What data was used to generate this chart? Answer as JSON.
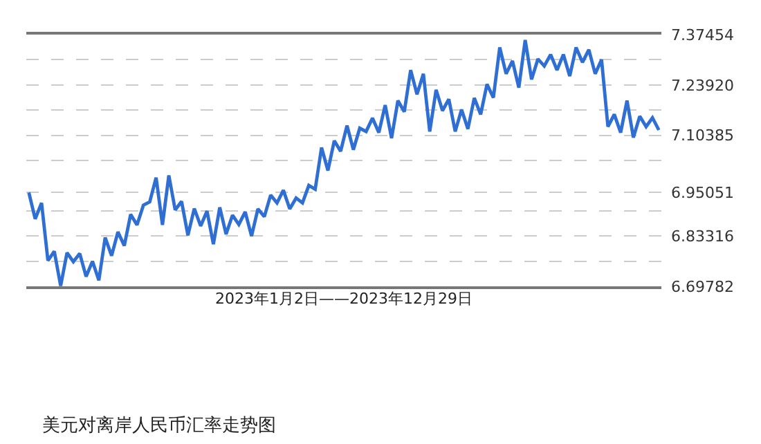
{
  "chart_data": {
    "type": "line",
    "title": "美元对离岸人民币汇率走势图",
    "xlabel": "2023年1月2日——2023年12月29日",
    "categories": [
      null,
      null,
      null,
      null,
      null,
      null,
      null,
      null,
      null,
      null,
      null,
      null,
      null,
      null,
      null,
      null,
      null,
      null,
      null,
      null,
      null,
      null,
      null,
      null,
      null,
      null,
      null,
      null,
      null,
      null,
      null,
      null,
      null,
      null,
      null,
      null,
      null,
      null,
      null,
      null,
      null,
      null,
      null,
      null,
      null,
      null,
      null,
      null,
      null,
      null,
      null,
      null,
      null,
      null,
      null,
      null,
      null,
      null,
      null,
      null,
      null,
      null,
      null,
      null,
      null,
      null,
      null,
      null,
      null,
      null,
      null,
      null,
      null,
      null,
      null,
      null,
      null,
      null,
      null,
      null,
      null,
      null,
      null,
      null,
      null,
      null,
      null,
      null,
      null,
      null,
      null,
      null,
      null,
      null,
      null,
      null,
      null,
      null,
      null,
      null
    ],
    "series": [
      {
        "color": "#2f6fd3",
        "values": [
          6.95,
          6.879,
          6.922,
          6.767,
          6.792,
          6.699,
          6.788,
          6.764,
          6.786,
          6.724,
          6.765,
          6.714,
          6.829,
          6.78,
          6.844,
          6.807,
          6.891,
          6.863,
          6.916,
          6.925,
          6.99,
          6.863,
          6.996,
          6.903,
          6.926,
          6.835,
          6.907,
          6.86,
          6.9,
          6.811,
          6.91,
          6.838,
          6.889,
          6.864,
          6.898,
          6.833,
          6.906,
          6.885,
          6.943,
          6.922,
          6.956,
          6.906,
          6.935,
          6.922,
          6.969,
          6.959,
          7.071,
          7.009,
          7.089,
          7.061,
          7.13,
          7.065,
          7.123,
          7.114,
          7.15,
          7.111,
          7.185,
          7.096,
          7.197,
          7.167,
          7.279,
          7.214,
          7.269,
          7.114,
          7.226,
          7.17,
          7.201,
          7.114,
          7.173,
          7.121,
          7.204,
          7.16,
          7.241,
          7.205,
          7.34,
          7.269,
          7.304,
          7.232,
          7.36,
          7.254,
          7.309,
          7.29,
          7.321,
          7.279,
          7.321,
          7.263,
          7.34,
          7.3,
          7.334,
          7.269,
          7.307,
          7.127,
          7.16,
          7.111,
          7.197,
          7.098,
          7.155,
          7.127,
          7.151,
          7.118
        ]
      }
    ],
    "ylim": [
      6.69782,
      7.37454
    ],
    "yticks": [
      6.69782,
      {
        "value": 6.76549,
        "label": null
      },
      6.83316,
      {
        "value": 6.90083,
        "label": null
      },
      6.95051,
      {
        "value": 7.03618,
        "label": null
      },
      7.10385,
      {
        "value": 7.17152,
        "label": null
      },
      {
        "value": 7.2392,
        "label": "7.23920"
      },
      {
        "value": 7.30687,
        "label": null
      },
      7.37454
    ],
    "grid": "y",
    "tick_labels": "y",
    "marker": "none",
    "line_style": "solid"
  }
}
